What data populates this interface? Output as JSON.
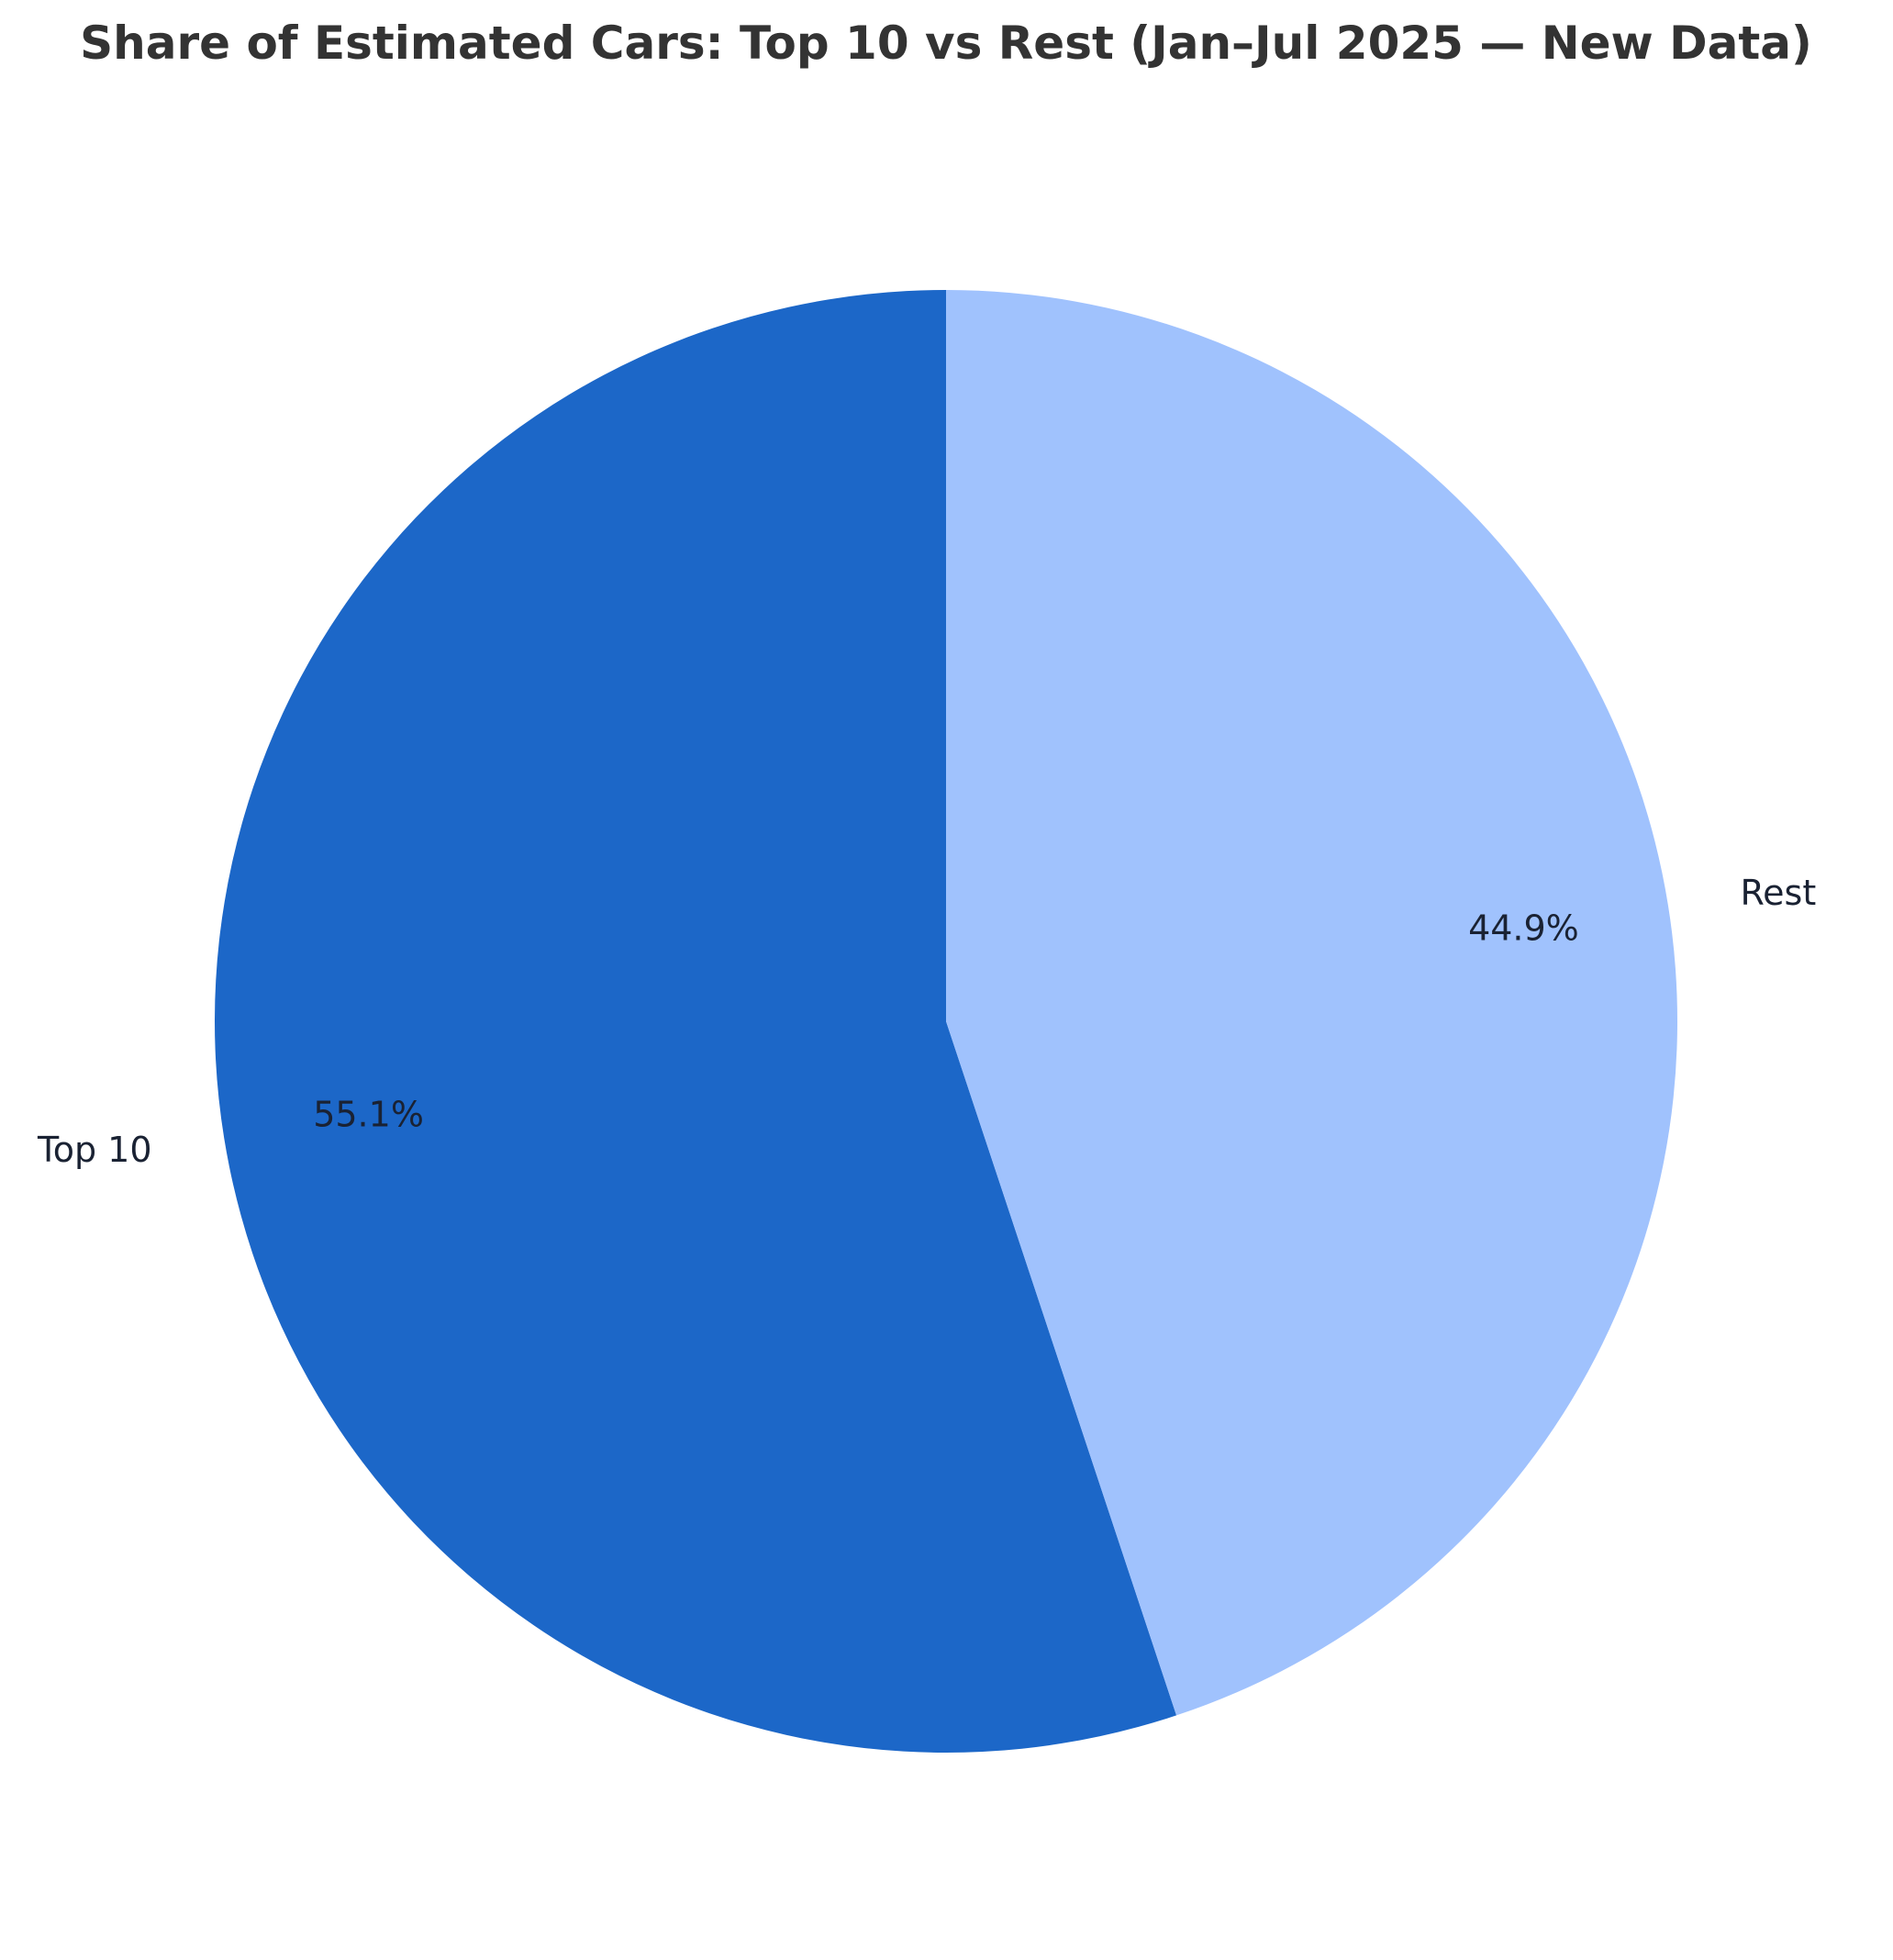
{
  "chart_data": {
    "type": "pie",
    "title": "Share of Estimated Cars: Top 10 vs Rest (Jan–Jul 2025 — New Data)",
    "categories": [
      "Top 10",
      "Rest"
    ],
    "values": [
      55.1,
      44.9
    ],
    "value_labels": [
      "55.1%",
      "44.9%"
    ],
    "colors": [
      "#1c67c8",
      "#a0c2fd"
    ],
    "start_angle_deg": 90,
    "direction": "counterclockwise"
  }
}
